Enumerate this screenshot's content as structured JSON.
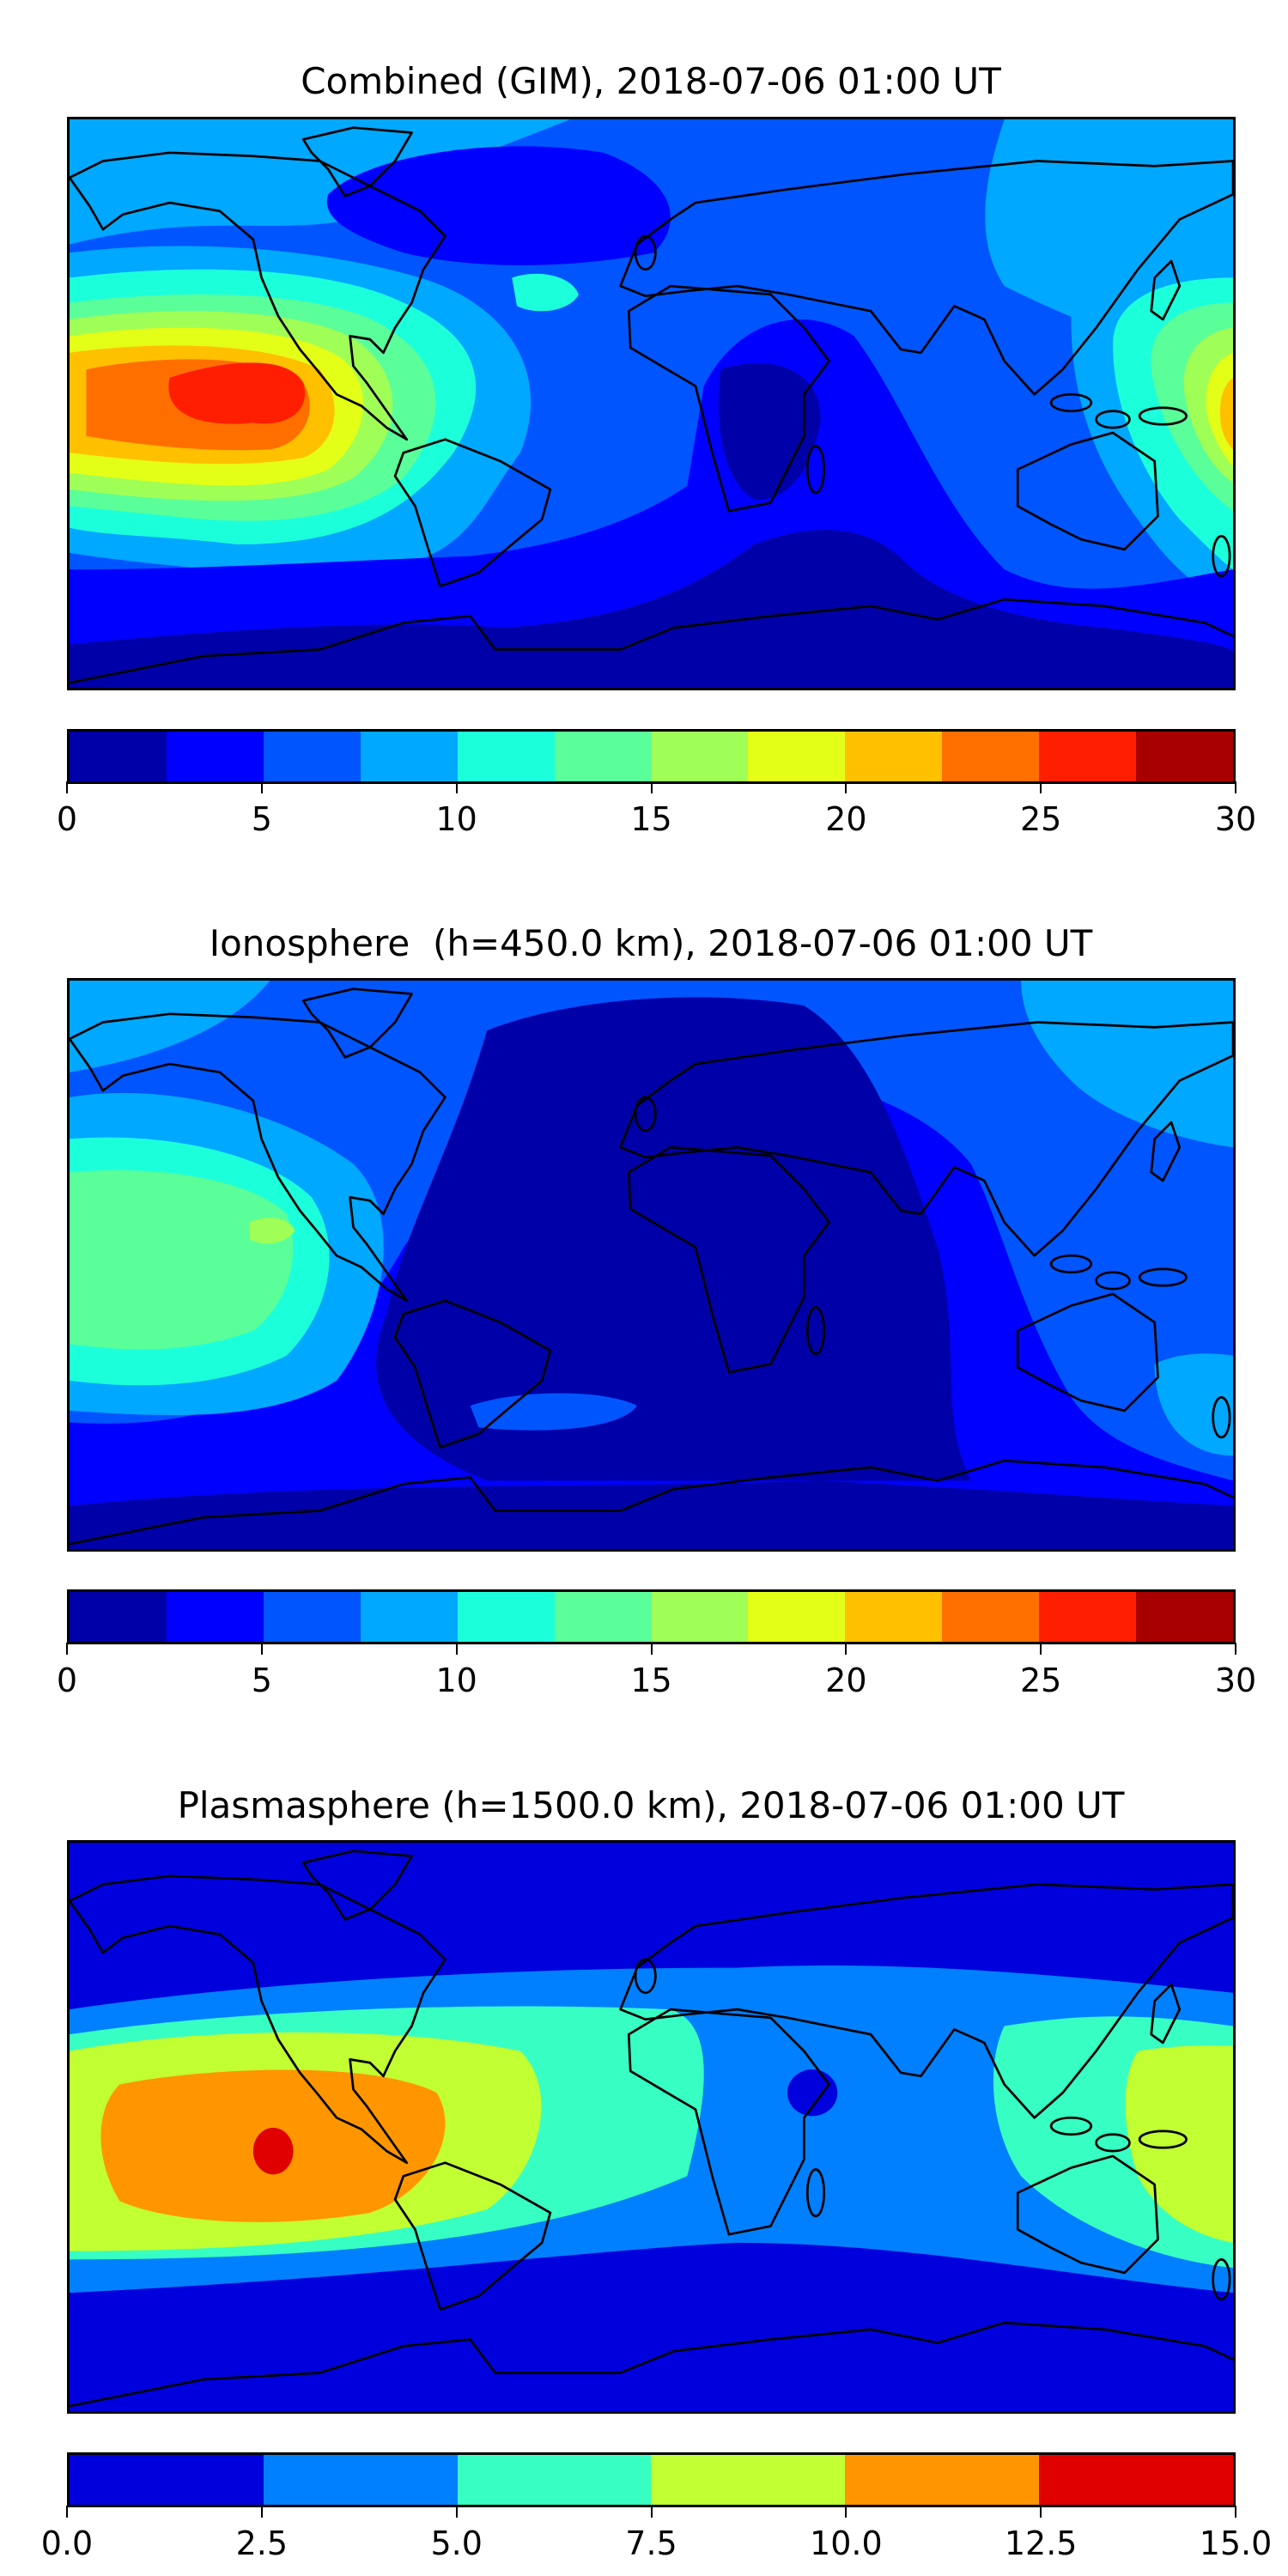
{
  "chart_data": [
    {
      "type": "heatmap",
      "title": "Combined (GIM), 2018-07-06 01:00 UT",
      "map": "world coastlines, equirectangular, lon -180..180, lat -90..90",
      "colorbar": {
        "range": [
          0,
          30
        ],
        "levels": [
          0,
          2.5,
          5,
          7.5,
          10,
          12.5,
          15,
          17.5,
          20,
          22.5,
          25,
          27.5,
          30
        ],
        "tick_labels": [
          "0",
          "5",
          "10",
          "15",
          "20",
          "25",
          "30"
        ],
        "tick_values": [
          0,
          5,
          10,
          15,
          20,
          25,
          30
        ],
        "colors": [
          "#0000A8",
          "#0000FF",
          "#0055FF",
          "#00A8FF",
          "#1CFFDB",
          "#5AFF9A",
          "#A0FF56",
          "#E4FF17",
          "#FFC000",
          "#FF6F00",
          "#FF1E00",
          "#A80000"
        ]
      },
      "features": [
        {
          "region": "central Pacific / west of Central America",
          "max_level_range": [
            25,
            27.5
          ]
        },
        {
          "region": "western Pacific / Indonesia",
          "max_level_range": [
            20,
            22.5
          ]
        },
        {
          "region": "southern Indian Ocean / Antarctica",
          "min_level_range": [
            0,
            2.5
          ]
        }
      ]
    },
    {
      "type": "heatmap",
      "title": "Ionosphere  (h=450.0 km), 2018-07-06 01:00 UT",
      "map": "world coastlines, equirectangular, lon -180..180, lat -90..90",
      "colorbar": {
        "range": [
          0,
          30
        ],
        "levels": [
          0,
          2.5,
          5,
          7.5,
          10,
          12.5,
          15,
          17.5,
          20,
          22.5,
          25,
          27.5,
          30
        ],
        "tick_labels": [
          "0",
          "5",
          "10",
          "15",
          "20",
          "25",
          "30"
        ],
        "tick_values": [
          0,
          5,
          10,
          15,
          20,
          25,
          30
        ],
        "colors": [
          "#0000A8",
          "#0000FF",
          "#0055FF",
          "#00A8FF",
          "#1CFFDB",
          "#5AFF9A",
          "#A0FF56",
          "#E4FF17",
          "#FFC000",
          "#FF6F00",
          "#FF1E00",
          "#A80000"
        ]
      },
      "features": [
        {
          "region": "eastern Pacific",
          "max_level_range": [
            15,
            17.5
          ]
        },
        {
          "region": "Atlantic / Africa / Indian Ocean",
          "min_level_range": [
            0,
            2.5
          ]
        }
      ]
    },
    {
      "type": "heatmap",
      "title": "Plasmasphere (h=1500.0 km), 2018-07-06 01:00 UT",
      "map": "world coastlines, equirectangular, lon -180..180, lat -90..90",
      "colorbar": {
        "range": [
          0,
          15
        ],
        "levels": [
          0,
          2.5,
          5,
          7.5,
          10,
          12.5,
          15
        ],
        "tick_labels": [
          "0.0",
          "2.5",
          "5.0",
          "7.5",
          "10.0",
          "12.5",
          "15.0"
        ],
        "tick_values": [
          0,
          2.5,
          5,
          7.5,
          10,
          12.5,
          15
        ],
        "colors": [
          "#0000DD",
          "#0080FF",
          "#37FFC3",
          "#C1FF33",
          "#FF9600",
          "#E00000"
        ]
      },
      "features": [
        {
          "region": "eastern Pacific, south of equator",
          "max_level_range": [
            12.5,
            15
          ]
        },
        {
          "region": "equatorial band",
          "level_range": [
            5,
            10
          ]
        },
        {
          "region": "polar regions",
          "level_range": [
            0,
            2.5
          ]
        }
      ]
    }
  ]
}
